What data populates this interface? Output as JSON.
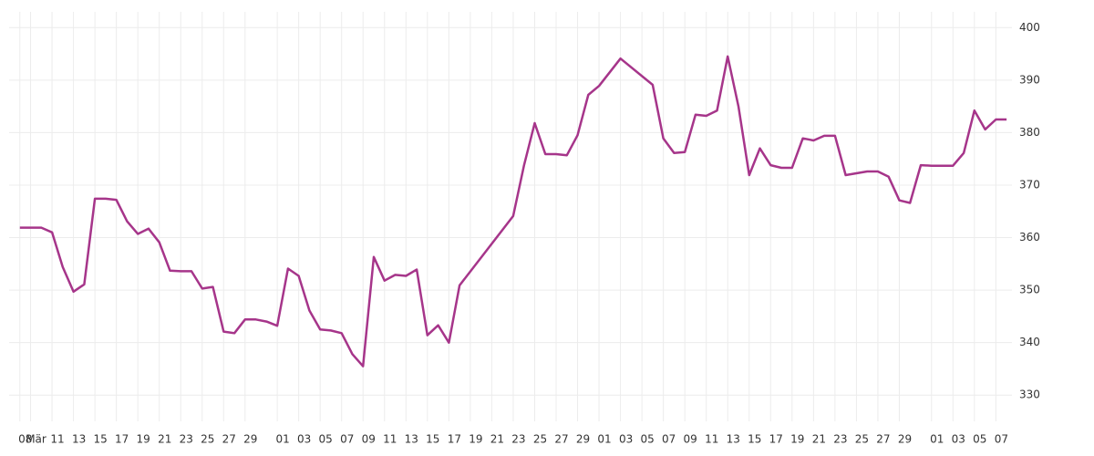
{
  "chart_data": {
    "type": "line",
    "x": [
      0,
      2,
      3,
      4,
      5,
      6,
      7,
      8,
      9,
      10,
      11,
      12,
      13,
      14,
      15,
      16,
      17,
      18,
      19,
      20,
      21,
      22,
      23,
      24,
      25,
      26,
      27,
      28,
      29,
      30,
      31,
      32,
      33,
      34,
      35,
      36,
      37,
      38,
      39,
      40,
      41,
      46,
      47,
      48,
      49,
      50,
      51,
      52,
      53,
      54,
      56,
      59,
      60,
      61,
      62,
      63,
      64,
      65,
      66,
      67,
      68,
      69,
      70,
      71,
      72,
      73,
      74,
      75,
      76,
      77,
      79,
      80,
      81,
      82,
      83,
      84,
      85,
      87,
      88,
      89,
      90,
      91,
      92
    ],
    "values": [
      361.9,
      361.9,
      361.0,
      354.4,
      349.7,
      351.1,
      367.4,
      367.4,
      367.2,
      363.1,
      360.7,
      361.7,
      359.1,
      353.7,
      353.6,
      353.6,
      350.3,
      350.6,
      342.1,
      341.8,
      344.4,
      344.4,
      344.0,
      343.2,
      354.1,
      352.7,
      346.1,
      342.5,
      342.3,
      341.8,
      337.8,
      335.5,
      356.3,
      351.8,
      352.9,
      352.7,
      353.9,
      341.4,
      343.3,
      340.0,
      350.9,
      364.1,
      373.7,
      381.8,
      375.9,
      375.9,
      375.7,
      379.5,
      387.2,
      388.9,
      394.1,
      389.1,
      378.9,
      376.1,
      376.3,
      383.4,
      383.2,
      384.2,
      394.5,
      385.0,
      371.9,
      377.0,
      373.8,
      373.3,
      373.3,
      378.9,
      378.5,
      379.4,
      379.4,
      371.9,
      372.6,
      372.6,
      371.6,
      367.1,
      366.6,
      373.8,
      373.7,
      373.7,
      376.1,
      384.2,
      380.6,
      382.5,
      382.5
    ],
    "color": "#a6358a",
    "xlim": [
      -1,
      92.5
    ],
    "ylim": [
      325,
      403
    ],
    "yticks": [
      330,
      340,
      350,
      360,
      370,
      380,
      390,
      400
    ],
    "xticks": [
      {
        "value": 0,
        "label": "08"
      },
      {
        "value": 1,
        "label": "Mär"
      },
      {
        "value": 3,
        "label": "11"
      },
      {
        "value": 5,
        "label": "13"
      },
      {
        "value": 7,
        "label": "15"
      },
      {
        "value": 9,
        "label": "17"
      },
      {
        "value": 11,
        "label": "19"
      },
      {
        "value": 13,
        "label": "21"
      },
      {
        "value": 15,
        "label": "23"
      },
      {
        "value": 17,
        "label": "25"
      },
      {
        "value": 19,
        "label": "27"
      },
      {
        "value": 21,
        "label": "29"
      },
      {
        "value": 24,
        "label": "01"
      },
      {
        "value": 26,
        "label": "03"
      },
      {
        "value": 28,
        "label": "05"
      },
      {
        "value": 30,
        "label": "07"
      },
      {
        "value": 32,
        "label": "09"
      },
      {
        "value": 34,
        "label": "11"
      },
      {
        "value": 36,
        "label": "13"
      },
      {
        "value": 38,
        "label": "15"
      },
      {
        "value": 40,
        "label": "17"
      },
      {
        "value": 42,
        "label": "19"
      },
      {
        "value": 44,
        "label": "21"
      },
      {
        "value": 46,
        "label": "23"
      },
      {
        "value": 48,
        "label": "25"
      },
      {
        "value": 50,
        "label": "27"
      },
      {
        "value": 52,
        "label": "29"
      },
      {
        "value": 54,
        "label": "01"
      },
      {
        "value": 56,
        "label": "03"
      },
      {
        "value": 58,
        "label": "05"
      },
      {
        "value": 60,
        "label": "07"
      },
      {
        "value": 62,
        "label": "09"
      },
      {
        "value": 64,
        "label": "11"
      },
      {
        "value": 66,
        "label": "13"
      },
      {
        "value": 68,
        "label": "15"
      },
      {
        "value": 70,
        "label": "17"
      },
      {
        "value": 72,
        "label": "19"
      },
      {
        "value": 74,
        "label": "21"
      },
      {
        "value": 76,
        "label": "23"
      },
      {
        "value": 78,
        "label": "25"
      },
      {
        "value": 80,
        "label": "27"
      },
      {
        "value": 82,
        "label": "29"
      },
      {
        "value": 85,
        "label": "01"
      },
      {
        "value": 87,
        "label": "03"
      },
      {
        "value": 89,
        "label": "05"
      },
      {
        "value": 91,
        "label": "07"
      }
    ],
    "grid": true
  }
}
